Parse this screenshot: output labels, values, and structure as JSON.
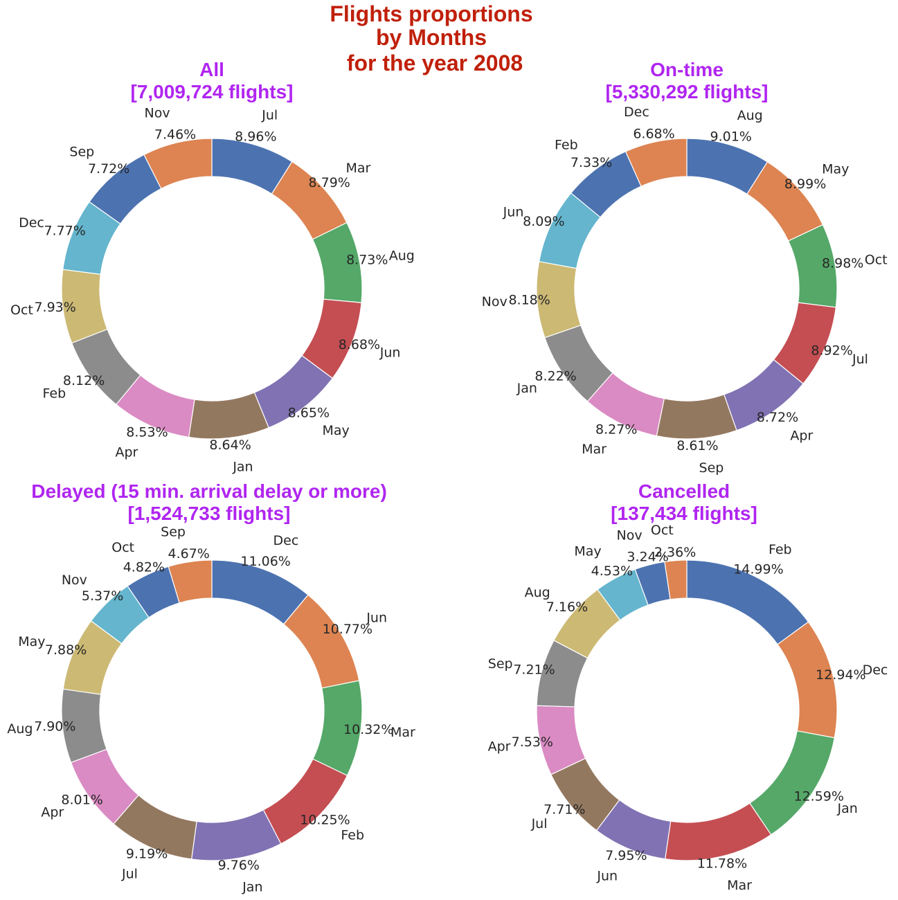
{
  "figure": {
    "suptitle": [
      "Flights proportions",
      "by Months",
      "for the year 2008"
    ],
    "colors": [
      "#4c72b0",
      "#dd8452",
      "#55a868",
      "#c44e52",
      "#8172b3",
      "#937860",
      "#da8bc3",
      "#8c8c8c",
      "#ccb974",
      "#64b5cd"
    ]
  },
  "chart_data": [
    {
      "type": "pie",
      "style": "donut",
      "title": [
        "All",
        "[7,009,724 flights]"
      ],
      "categories": [
        "Jul",
        "Mar",
        "Aug",
        "Jun",
        "May",
        "Jan",
        "Apr",
        "Feb",
        "Oct",
        "Dec",
        "Sep",
        "Nov"
      ],
      "values": [
        8.96,
        8.79,
        8.73,
        8.68,
        8.65,
        8.64,
        8.53,
        8.12,
        7.93,
        7.77,
        7.72,
        7.46
      ],
      "value_labels": [
        "8.96%",
        "8.79%",
        "8.73%",
        "8.68%",
        "8.65%",
        "8.64%",
        "8.53%",
        "8.12%",
        "7.93%",
        "7.77%",
        "7.72%",
        "7.46%"
      ]
    },
    {
      "type": "pie",
      "style": "donut",
      "title": [
        "On-time",
        "[5,330,292 flights]"
      ],
      "categories": [
        "Aug",
        "May",
        "Oct",
        "Jul",
        "Apr",
        "Sep",
        "Mar",
        "Jan",
        "Nov",
        "Jun",
        "Feb",
        "Dec"
      ],
      "values": [
        9.01,
        8.99,
        8.98,
        8.92,
        8.72,
        8.61,
        8.27,
        8.22,
        8.18,
        8.09,
        7.33,
        6.68
      ],
      "value_labels": [
        "9.01%",
        "8.99%",
        "8.98%",
        "8.92%",
        "8.72%",
        "8.61%",
        "8.27%",
        "8.22%",
        "8.18%",
        "8.09%",
        "7.33%",
        "6.68%"
      ]
    },
    {
      "type": "pie",
      "style": "donut",
      "title": [
        "Delayed (15 min. arrival delay or more)",
        "[1,524,733 flights]"
      ],
      "categories": [
        "Dec",
        "Jun",
        "Mar",
        "Feb",
        "Jan",
        "Jul",
        "Apr",
        "Aug",
        "May",
        "Nov",
        "Oct",
        "Sep"
      ],
      "values": [
        11.06,
        10.77,
        10.32,
        10.25,
        9.76,
        9.19,
        8.01,
        7.9,
        7.88,
        5.37,
        4.82,
        4.67
      ],
      "value_labels": [
        "11.06%",
        "10.77%",
        "10.32%",
        "10.25%",
        "9.76%",
        "9.19%",
        "8.01%",
        "7.90%",
        "7.88%",
        "5.37%",
        "4.82%",
        "4.67%"
      ]
    },
    {
      "type": "pie",
      "style": "donut",
      "title": [
        "Cancelled",
        "[137,434 flights]"
      ],
      "categories": [
        "Feb",
        "Dec",
        "Jan",
        "Mar",
        "Jun",
        "Jul",
        "Apr",
        "Sep",
        "Aug",
        "May",
        "Nov",
        "Oct"
      ],
      "values": [
        14.99,
        12.94,
        12.59,
        11.78,
        7.95,
        7.71,
        7.53,
        7.21,
        7.16,
        4.53,
        3.24,
        2.36
      ],
      "value_labels": [
        "14.99%",
        "12.94%",
        "12.59%",
        "11.78%",
        "7.95%",
        "7.71%",
        "7.53%",
        "7.21%",
        "7.16%",
        "4.53%",
        "3.24%",
        "2.36%"
      ]
    }
  ]
}
